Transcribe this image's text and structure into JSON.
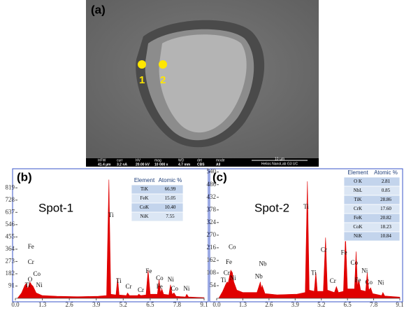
{
  "sem_image": {
    "label": "(a)",
    "points": [
      "1",
      "2"
    ],
    "info_bar": [
      {
        "label": "HFW",
        "value": "41.4 µm"
      },
      {
        "label": "curr",
        "value": "3.2 nA"
      },
      {
        "label": "HV",
        "value": "20.00 kV"
      },
      {
        "label": "mag",
        "value": "10 000 x"
      },
      {
        "label": "WD",
        "value": "4.7 mm"
      },
      {
        "label": "det",
        "value": "CBS"
      },
      {
        "label": "mode",
        "value": "All"
      }
    ],
    "scale_bar": "10 µm",
    "instrument": "Helios NanoLab G3 UC"
  },
  "chart_data": [
    {
      "type": "area",
      "label": "(b)",
      "title": "Spot-1",
      "color": "#e00000",
      "x": [
        0.1,
        0.3,
        0.45,
        0.52,
        0.6,
        0.7,
        0.78,
        0.85,
        1.0,
        1.3,
        2.0,
        3.0,
        4.0,
        4.4,
        4.51,
        4.6,
        4.85,
        4.93,
        5.0,
        5.35,
        5.41,
        5.5,
        5.9,
        5.95,
        6.05,
        6.3,
        6.4,
        6.5,
        6.85,
        6.93,
        7.0,
        7.06,
        7.15,
        7.4,
        7.48,
        7.56,
        7.65,
        7.75,
        8.2,
        8.26,
        8.35,
        9.1
      ],
      "values": [
        0,
        40,
        95,
        110,
        70,
        120,
        100,
        90,
        40,
        20,
        15,
        12,
        15,
        20,
        880,
        30,
        25,
        150,
        25,
        20,
        40,
        20,
        20,
        30,
        20,
        25,
        210,
        30,
        30,
        140,
        40,
        70,
        30,
        25,
        100,
        30,
        40,
        15,
        10,
        30,
        10,
        5
      ],
      "xlim": [
        0,
        9.1
      ],
      "xticks": [
        {
          "value": 0,
          "label": "0.0"
        },
        1.3,
        2.6,
        3.9,
        5.2,
        6.5,
        7.8,
        9.1
      ],
      "ylim": [
        0,
        950
      ],
      "yticks": [
        91,
        182,
        273,
        364,
        455,
        546,
        637,
        728,
        819
      ],
      "annotations": [
        {
          "text": "Fe",
          "x": 0.6,
          "y": 380
        },
        {
          "text": "Cr",
          "x": 0.6,
          "y": 265
        },
        {
          "text": "O",
          "x": 0.6,
          "y": 135
        },
        {
          "text": "Co",
          "x": 0.86,
          "y": 177
        },
        {
          "text": "Ti",
          "x": 0.46,
          "y": 94
        },
        {
          "text": "Ni",
          "x": 1.0,
          "y": 94
        },
        {
          "text": "Ti",
          "x": 4.48,
          "y": 614
        },
        {
          "text": "Ti",
          "x": 4.85,
          "y": 125
        },
        {
          "text": "Cr",
          "x": 5.31,
          "y": 83
        },
        {
          "text": "Cr",
          "x": 5.9,
          "y": 57
        },
        {
          "text": "Fe",
          "x": 6.28,
          "y": 198
        },
        {
          "text": "Co",
          "x": 6.78,
          "y": 146
        },
        {
          "text": "Ni",
          "x": 7.34,
          "y": 135
        },
        {
          "text": "Fe",
          "x": 6.8,
          "y": 83
        },
        {
          "text": "Co",
          "x": 7.5,
          "y": 68
        },
        {
          "text": "Ni",
          "x": 8.1,
          "y": 68
        }
      ],
      "table": {
        "headers": [
          "Element",
          "Atomic %"
        ],
        "rows": [
          [
            "TiK",
            "66.99"
          ],
          [
            "FeK",
            "15.05"
          ],
          [
            "CoK",
            "10.40"
          ],
          [
            "NiK",
            "7.55"
          ]
        ]
      }
    },
    {
      "type": "area",
      "label": "(c)",
      "title": "Spot-2",
      "color": "#e00000",
      "x": [
        0.1,
        0.3,
        0.45,
        0.52,
        0.57,
        0.7,
        0.78,
        0.85,
        1.0,
        1.3,
        2.0,
        2.17,
        2.22,
        2.26,
        2.4,
        3.0,
        4.0,
        4.4,
        4.51,
        4.6,
        4.85,
        4.93,
        5.0,
        5.3,
        5.41,
        5.5,
        5.85,
        5.95,
        6.05,
        6.3,
        6.4,
        6.5,
        6.85,
        6.93,
        7.0,
        7.06,
        7.15,
        7.4,
        7.48,
        7.56,
        7.65,
        7.75,
        8.2,
        8.26,
        8.35,
        9.1
      ],
      "values": [
        0,
        30,
        60,
        70,
        65,
        120,
        110,
        70,
        35,
        25,
        25,
        70,
        40,
        55,
        20,
        15,
        18,
        25,
        500,
        35,
        30,
        110,
        30,
        30,
        260,
        35,
        25,
        50,
        25,
        30,
        270,
        40,
        40,
        200,
        50,
        80,
        35,
        30,
        110,
        35,
        45,
        20,
        12,
        25,
        10,
        5
      ],
      "xlim": [
        0,
        9.1
      ],
      "xticks": [
        {
          "value": 0,
          "label": "0.0"
        },
        1.3,
        2.6,
        3.9,
        5.2,
        6.5,
        7.8,
        9.1
      ],
      "ylim": [
        0,
        548
      ],
      "yticks": [
        54,
        108,
        162,
        216,
        270,
        324,
        378,
        432,
        486,
        540
      ],
      "annotations": [
        {
          "text": "Co",
          "x": 0.59,
          "y": 217
        },
        {
          "text": "Fe",
          "x": 0.45,
          "y": 153
        },
        {
          "text": "Cr",
          "x": 0.34,
          "y": 107
        },
        {
          "text": "Ti",
          "x": 0.2,
          "y": 75
        },
        {
          "text": "Ni",
          "x": 0.65,
          "y": 84
        },
        {
          "text": "Nb",
          "x": 2.1,
          "y": 145
        },
        {
          "text": "Nb",
          "x": 1.9,
          "y": 92
        },
        {
          "text": "Ti",
          "x": 4.31,
          "y": 390
        },
        {
          "text": "Cr",
          "x": 5.17,
          "y": 205
        },
        {
          "text": "Ti",
          "x": 4.69,
          "y": 107
        },
        {
          "text": "Cr",
          "x": 5.62,
          "y": 72
        },
        {
          "text": "Fe",
          "x": 6.17,
          "y": 194
        },
        {
          "text": "Co",
          "x": 6.65,
          "y": 150
        },
        {
          "text": "Ni",
          "x": 7.2,
          "y": 116
        },
        {
          "text": "Fe",
          "x": 6.86,
          "y": 75
        },
        {
          "text": "Co",
          "x": 7.38,
          "y": 66
        },
        {
          "text": "Ni",
          "x": 8.0,
          "y": 64
        }
      ],
      "table": {
        "headers": [
          "Element",
          "Atomic %"
        ],
        "rows": [
          [
            "O K",
            "2.81"
          ],
          [
            "NbL",
            "0.85"
          ],
          [
            "TiK",
            "28.86"
          ],
          [
            "CrK",
            "17.60"
          ],
          [
            "FeK",
            "20.82"
          ],
          [
            "CoK",
            "18.23"
          ],
          [
            "NiK",
            "10.84"
          ]
        ]
      }
    }
  ]
}
